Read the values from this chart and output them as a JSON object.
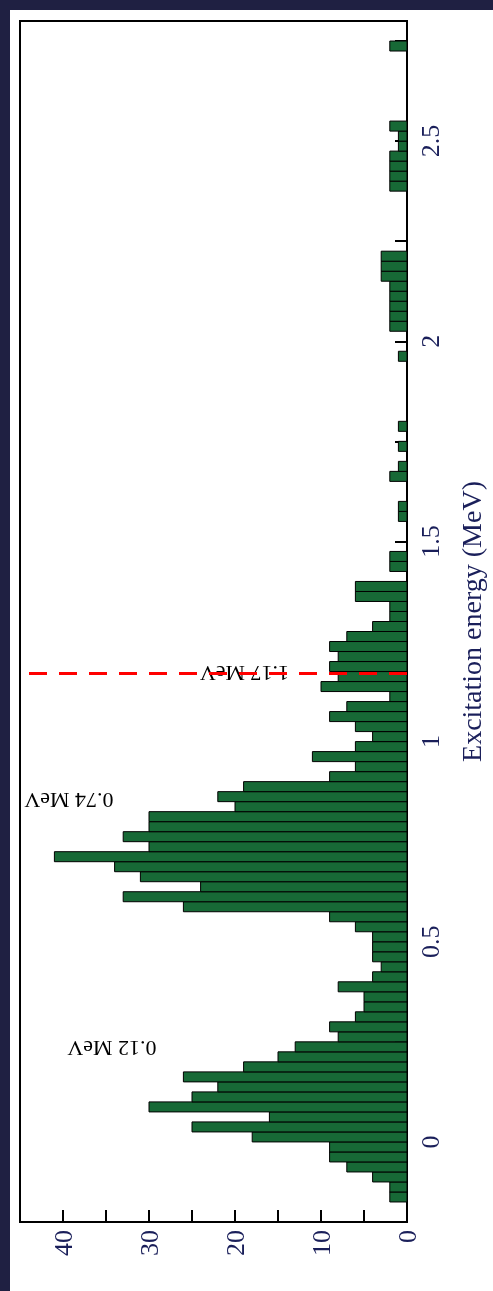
{
  "chart_data": {
    "type": "histogram",
    "orientation": "horizontal",
    "ylabel": "Excitation energy (MeV)",
    "bins": [
      -0.2,
      -0.175,
      -0.15,
      -0.125,
      -0.1,
      -0.075,
      -0.05,
      -0.025,
      0,
      0.025,
      0.05,
      0.075,
      0.1,
      0.125,
      0.15,
      0.175,
      0.2,
      0.225,
      0.25,
      0.275,
      0.3,
      0.325,
      0.35,
      0.375,
      0.4,
      0.425,
      0.45,
      0.475,
      0.5,
      0.525,
      0.55,
      0.575,
      0.6,
      0.625,
      0.65,
      0.675,
      0.7,
      0.725,
      0.75,
      0.775,
      0.8,
      0.825,
      0.85,
      0.875,
      0.9,
      0.925,
      0.95,
      0.975,
      1,
      1.025,
      1.05,
      1.075,
      1.1,
      1.125,
      1.15,
      1.175,
      1.2,
      1.225,
      1.25,
      1.275,
      1.3,
      1.325,
      1.35,
      1.375,
      1.4,
      1.425,
      1.45,
      1.475,
      1.5,
      1.525,
      1.55,
      1.575,
      1.6,
      1.625,
      1.65,
      1.675,
      1.7,
      1.725,
      1.75,
      1.775,
      1.8,
      1.825,
      1.85,
      1.875,
      1.9,
      1.925,
      1.95,
      1.975,
      2,
      2.025,
      2.05,
      2.075,
      2.1,
      2.125,
      2.15,
      2.175,
      2.2,
      2.225,
      2.25,
      2.275,
      2.3,
      2.325,
      2.35,
      2.375,
      2.4,
      2.425,
      2.45,
      2.475,
      2.5,
      2.525,
      2.55,
      2.575,
      2.6,
      2.625,
      2.65,
      2.675,
      2.7,
      2.725,
      2.75,
      2.775,
      2.8
    ],
    "values": [
      0,
      0,
      2,
      2,
      4,
      7,
      9,
      9,
      18,
      25,
      16,
      30,
      25,
      22,
      26,
      19,
      15,
      13,
      8,
      9,
      6,
      5,
      5,
      8,
      4,
      3,
      4,
      4,
      4,
      6,
      9,
      26,
      33,
      24,
      31,
      34,
      41,
      30,
      33,
      30,
      30,
      20,
      22,
      19,
      9,
      6,
      11,
      6,
      4,
      6,
      9,
      7,
      2,
      10,
      8,
      9,
      8,
      9,
      7,
      4,
      2,
      2,
      6,
      6,
      0,
      2,
      2,
      0,
      0,
      0,
      1,
      1,
      0,
      0,
      2,
      1,
      0,
      1,
      0,
      1,
      0,
      0,
      0,
      0,
      0,
      0,
      1,
      0,
      0,
      2,
      2,
      2,
      2,
      2,
      3,
      3,
      3,
      0,
      0,
      0,
      0,
      0,
      0,
      2,
      2,
      2,
      2,
      1,
      1,
      2,
      0,
      0,
      0,
      0,
      0,
      0,
      0,
      2,
      0,
      0
    ],
    "color": "#176936",
    "ylim": [
      -0.2,
      2.8
    ],
    "yticks": [
      0,
      {
        "value": 0.25,
        "label": null
      },
      0.5,
      {
        "value": 0.75,
        "label": null
      },
      1,
      {
        "value": 1.25,
        "label": null
      },
      1.5,
      {
        "value": 1.75,
        "label": null
      },
      2,
      {
        "value": 2.25,
        "label": null
      },
      2.5,
      {
        "value": 2.75,
        "label": null
      }
    ],
    "xlim": [
      45,
      0
    ],
    "xticks": [
      {
        "value": 5,
        "label": null
      },
      10,
      {
        "value": 15,
        "label": null
      },
      20,
      {
        "value": 25,
        "label": null
      },
      30,
      {
        "value": 35,
        "label": null
      },
      40,
      0
    ],
    "ref_lines": [
      {
        "axis": "y",
        "value": 1.17,
        "label": "1.17 MeV",
        "color": "#ff0000",
        "line_style": "dashed"
      }
    ],
    "annotations": [
      {
        "text": "0.12 MeV",
        "x": 25,
        "y": 0.12
      },
      {
        "text": "0.74 MeV",
        "x": 30,
        "y": 0.74
      }
    ]
  }
}
